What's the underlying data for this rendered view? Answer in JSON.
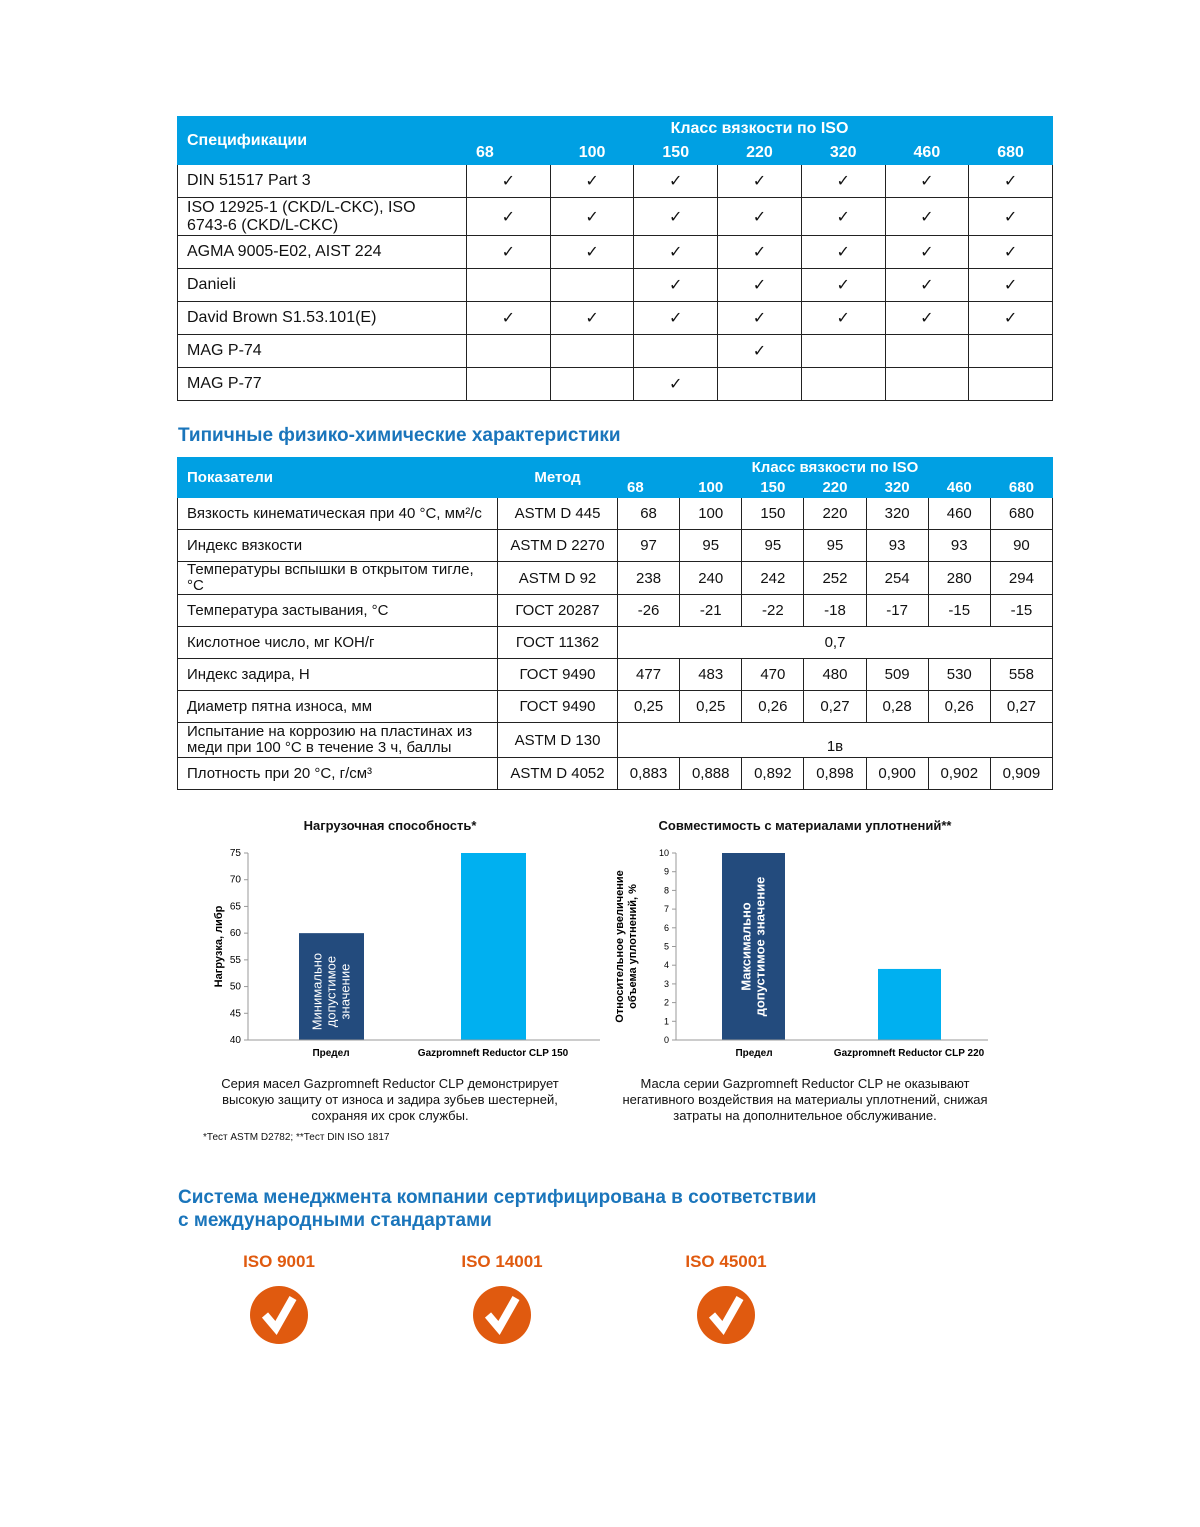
{
  "spec_table": {
    "header_spec": "Спецификации",
    "header_class": "Класс вязкости по ISO",
    "grades": [
      "68",
      "100",
      "150",
      "220",
      "320",
      "460",
      "680"
    ],
    "check_mark": "✓",
    "rows": [
      {
        "name": "DIN 51517 Part 3",
        "checks": [
          true,
          true,
          true,
          true,
          true,
          true,
          true
        ]
      },
      {
        "name": "ISO 12925-1 (CKD/L-CKC), ISO 6743-6 (CKD/L-CKC)",
        "checks": [
          true,
          true,
          true,
          true,
          true,
          true,
          true
        ]
      },
      {
        "name": "AGMA 9005-E02, AIST 224",
        "checks": [
          true,
          true,
          true,
          true,
          true,
          true,
          true
        ]
      },
      {
        "name": "Danieli",
        "checks": [
          false,
          false,
          true,
          true,
          true,
          true,
          true
        ]
      },
      {
        "name": "David Brown S1.53.101(E)",
        "checks": [
          true,
          true,
          true,
          true,
          true,
          true,
          true
        ]
      },
      {
        "name": "MAG P-74",
        "checks": [
          false,
          false,
          false,
          true,
          false,
          false,
          false
        ]
      },
      {
        "name": "MAG P-77",
        "checks": [
          false,
          false,
          true,
          false,
          false,
          false,
          false
        ]
      }
    ]
  },
  "props_title": "Типичные физико-химические характеристики",
  "props_table": {
    "header_param": "Показатели",
    "header_method": "Метод",
    "header_class": "Класс вязкости по ISO",
    "grades": [
      "68",
      "100",
      "150",
      "220",
      "320",
      "460",
      "680"
    ],
    "rows": [
      {
        "name": "Вязкость кинематическая при 40 °С, мм²/с",
        "method": "ASTM D 445",
        "values": [
          "68",
          "100",
          "150",
          "220",
          "320",
          "460",
          "680"
        ]
      },
      {
        "name": "Индекс вязкости",
        "method": "ASTM D 2270",
        "values": [
          "97",
          "95",
          "95",
          "95",
          "93",
          "93",
          "90"
        ]
      },
      {
        "name": "Температуры вспышки в открытом тигле, °С",
        "method": "ASTM D 92",
        "values": [
          "238",
          "240",
          "242",
          "252",
          "254",
          "280",
          "294"
        ]
      },
      {
        "name": "Температура застывания, °С",
        "method": "ГОСТ 20287",
        "values": [
          "-26",
          "-21",
          "-22",
          "-18",
          "-17",
          "-15",
          "-15"
        ]
      },
      {
        "name": "Кислотное число, мг КОН/г",
        "method": "ГОСТ 11362",
        "merged": "0,7"
      },
      {
        "name": "Индекс задира, Н",
        "method": "ГОСТ 9490",
        "values": [
          "477",
          "483",
          "470",
          "480",
          "509",
          "530",
          "558"
        ]
      },
      {
        "name": "Диаметр пятна износа, мм",
        "method": "ГОСТ 9490",
        "values": [
          "0,25",
          "0,25",
          "0,26",
          "0,27",
          "0,28",
          "0,26",
          "0,27"
        ]
      },
      {
        "name": "Испытание на коррозию на пластинах из меди при 100 °С в течение 3 ч, баллы",
        "method": "ASTM D 130",
        "merged": "1в"
      },
      {
        "name": "Плотность при 20 °С, г/см³",
        "method": "ASTM D 4052",
        "values": [
          "0,883",
          "0,888",
          "0,892",
          "0,898",
          "0,900",
          "0,902",
          "0,909"
        ]
      }
    ]
  },
  "chart_data": [
    {
      "type": "bar",
      "title": "Нагрузочная способность*",
      "ylabel": "Нагрузка, либр",
      "categories": [
        "Предел",
        "Gazpromneft Reductor CLP 150"
      ],
      "values": [
        60,
        75
      ],
      "bar_labels": [
        "Минимально допустимое значение",
        ""
      ],
      "ylim": [
        40,
        75
      ],
      "yticks": [
        40,
        45,
        50,
        55,
        60,
        65,
        70,
        75
      ],
      "colors": [
        "#234b7d",
        "#00b0f0"
      ],
      "caption": "Серия масел Gazpromneft Reductor CLP демонстрирует высокую защиту от износа и задира зубьев шестерней, сохраняя их срок службы."
    },
    {
      "type": "bar",
      "title": "Совместимость с материалами уплотнений**",
      "ylabel": "Относительное увеличение объема уплотнений, %",
      "categories": [
        "Предел",
        "Gazpromneft Reductor CLP 220"
      ],
      "values": [
        10,
        3.8
      ],
      "bar_labels": [
        "Максимально допустимое значение",
        ""
      ],
      "ylim": [
        0,
        10
      ],
      "yticks": [
        0,
        1,
        2,
        3,
        4,
        5,
        6,
        7,
        8,
        9,
        10
      ],
      "colors": [
        "#234b7d",
        "#00b0f0"
      ],
      "caption": "Масла серии Gazpromneft Reductor CLP не оказывают негативного воздействия на материалы уплотнений, снижая затраты на дополнительное обслуживание."
    }
  ],
  "footnote": "*Тест ASTM D2782; **Тест DIN ISO 1817",
  "cert_title_1": "Система менеджмента компании сертифицирована в соответствии",
  "cert_title_2": "с международными стандартами",
  "certs": [
    {
      "label": "ISO 9001",
      "icon": "check-circle-icon"
    },
    {
      "label": "ISO 14001",
      "icon": "check-circle-icon"
    },
    {
      "label": "ISO 45001",
      "icon": "check-circle-icon"
    }
  ],
  "colors": {
    "header_blue": "#00a0e3",
    "title_blue": "#1a75bb",
    "orange": "#e05a0f"
  }
}
